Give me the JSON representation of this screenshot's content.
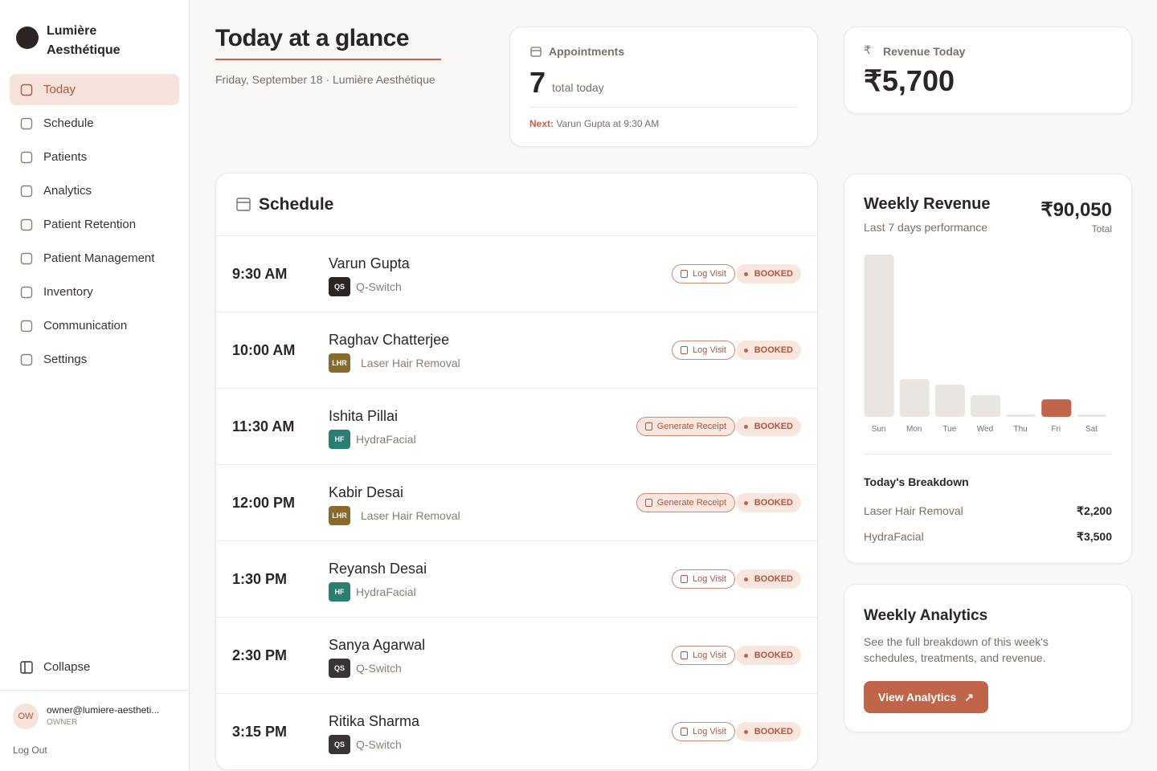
{
  "sidebar": {
    "brand": [
      "Lumière",
      "Aesthétique"
    ],
    "nav": [
      {
        "label": "Today",
        "active": true
      },
      {
        "label": "Schedule",
        "active": false
      },
      {
        "label": "Patients",
        "active": false
      },
      {
        "label": "Analytics",
        "active": false
      },
      {
        "label": "Patient Retention",
        "active": false
      },
      {
        "label": "Patient Management",
        "active": false
      },
      {
        "label": "Inventory",
        "active": false
      },
      {
        "label": "Communication",
        "active": false
      },
      {
        "label": "Settings",
        "active": false
      }
    ],
    "collapse": "Collapse",
    "user": {
      "initials": "OW",
      "email": "owner@lumiere-aestheti...",
      "role": "OWNER"
    },
    "logout": "Log Out"
  },
  "header": {
    "title": "Today at a glance",
    "subtitle": "Friday, September 18 · Lumière Aesthétique"
  },
  "appointments": {
    "label": "Appointments",
    "count": "7",
    "count_label": "total today",
    "next_label": "Next:",
    "next_text": "Varun Gupta at 9:30 AM"
  },
  "revenue_today": {
    "label": "Revenue Today",
    "value": "₹5,700"
  },
  "schedule": {
    "title": "Schedule",
    "rows": [
      {
        "time": "9:30 AM",
        "name": "Varun Gupta",
        "code": "QS",
        "code_color": "#2b2623",
        "treatment": "Q-Switch",
        "action": "Log Visit",
        "action_color": "#ffffff",
        "status": "BOOKED"
      },
      {
        "time": "10:00 AM",
        "name": "Raghav Chatterjee",
        "code": "LHR",
        "code_color": "#8a6a2a",
        "treatment": "Laser Hair Removal",
        "action": "Log Visit",
        "action_color": "#ffffff",
        "status": "BOOKED"
      },
      {
        "time": "11:30 AM",
        "name": "Ishita Pillai",
        "code": "HF",
        "code_color": "#2a7f73",
        "treatment": "HydraFacial",
        "action": "Generate Receipt",
        "action_color": "#f8e6df",
        "status": "BOOKED"
      },
      {
        "time": "12:00 PM",
        "name": "Kabir Desai",
        "code": "LHR",
        "code_color": "#8a6a2a",
        "treatment": "Laser Hair Removal",
        "action": "Generate Receipt",
        "action_color": "#f8e6df",
        "status": "BOOKED"
      },
      {
        "time": "1:30 PM",
        "name": "Reyansh Desai",
        "code": "HF",
        "code_color": "#2a7f73",
        "treatment": "HydraFacial",
        "action": "Log Visit",
        "action_color": "#ffffff",
        "status": "BOOKED"
      },
      {
        "time": "2:30 PM",
        "name": "Sanya Agarwal",
        "code": "QS",
        "code_color": "#3a3532",
        "treatment": "Q-Switch",
        "action": "Log Visit",
        "action_color": "#ffffff",
        "status": "BOOKED"
      },
      {
        "time": "3:15 PM",
        "name": "Ritika Sharma",
        "code": "QS",
        "code_color": "#3a3532",
        "treatment": "Q-Switch",
        "action": "Log Visit",
        "action_color": "#ffffff",
        "status": "BOOKED"
      }
    ]
  },
  "weekly_revenue": {
    "title": "Weekly Revenue",
    "subtitle": "Last 7 days performance",
    "total": "₹90,050",
    "total_label": "Total",
    "breakdown_title": "Today's Breakdown",
    "breakdown": [
      {
        "name": "Laser Hair Removal",
        "amount": "₹2,200"
      },
      {
        "name": "HydraFacial",
        "amount": "₹3,500"
      }
    ]
  },
  "chart_data": {
    "type": "bar",
    "categories": [
      "Sun",
      "Mon",
      "Tue",
      "Wed",
      "Thu",
      "Fri",
      "Sat"
    ],
    "values": [
      53000,
      12300,
      10500,
      7100,
      800,
      5700,
      650
    ],
    "colors": [
      "#e9e5e0",
      "#e9e5e0",
      "#e9e5e0",
      "#e9e5e0",
      "#e9e5e0",
      "#c0654a",
      "#e9e5e0"
    ]
  },
  "analytics": {
    "title": "Weekly Analytics",
    "text": "See the full breakdown of this week's schedules, treatments, and revenue.",
    "button": "View Analytics"
  }
}
